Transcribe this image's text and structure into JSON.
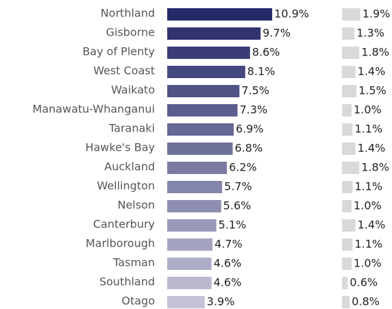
{
  "chart_data": {
    "type": "bar",
    "categories": [
      "Northland",
      "Gisborne",
      "Bay of Plenty",
      "West Coast",
      "Waikato",
      "Manawatu-Whanganui",
      "Taranaki",
      "Hawke's Bay",
      "Auckland",
      "Wellington",
      "Nelson",
      "Canterbury",
      "Marlborough",
      "Tasman",
      "Southland",
      "Otago"
    ],
    "series": [
      {
        "colors": [
          "#262a68",
          "#31346f",
          "#3b3e76",
          "#45487e",
          "#505385",
          "#5a5d8d",
          "#656794",
          "#6f719b",
          "#7a7ba3",
          "#8485aa",
          "#8f8fb1",
          "#9999b9",
          "#a4a4c0",
          "#aeaec7",
          "#b9b8cf",
          "#c3c2d6"
        ],
        "values": [
          10.9,
          9.7,
          8.6,
          8.1,
          7.5,
          7.3,
          6.9,
          6.8,
          6.2,
          5.7,
          5.6,
          5.1,
          4.7,
          4.6,
          4.6,
          3.9
        ],
        "value_labels": [
          "10.9%",
          "9.7%",
          "8.6%",
          "8.1%",
          "7.5%",
          "7.3%",
          "6.9%",
          "6.8%",
          "6.2%",
          "5.7%",
          "5.6%",
          "5.1%",
          "4.7%",
          "4.6%",
          "4.6%",
          "3.9%"
        ]
      },
      {
        "color": "#d9d9d9",
        "values": [
          1.9,
          1.3,
          1.8,
          1.4,
          1.5,
          1.0,
          1.1,
          1.4,
          1.8,
          1.1,
          1.0,
          1.4,
          1.1,
          1.0,
          0.6,
          0.8
        ],
        "value_labels": [
          "1.9%",
          "1.3%",
          "1.8%",
          "1.4%",
          "1.5%",
          "1.0%",
          "1.1%",
          "1.4%",
          "1.8%",
          "1.1%",
          "1.0%",
          "1.4%",
          "1.1%",
          "1.0%",
          "0.6%",
          "0.8%"
        ]
      }
    ]
  }
}
